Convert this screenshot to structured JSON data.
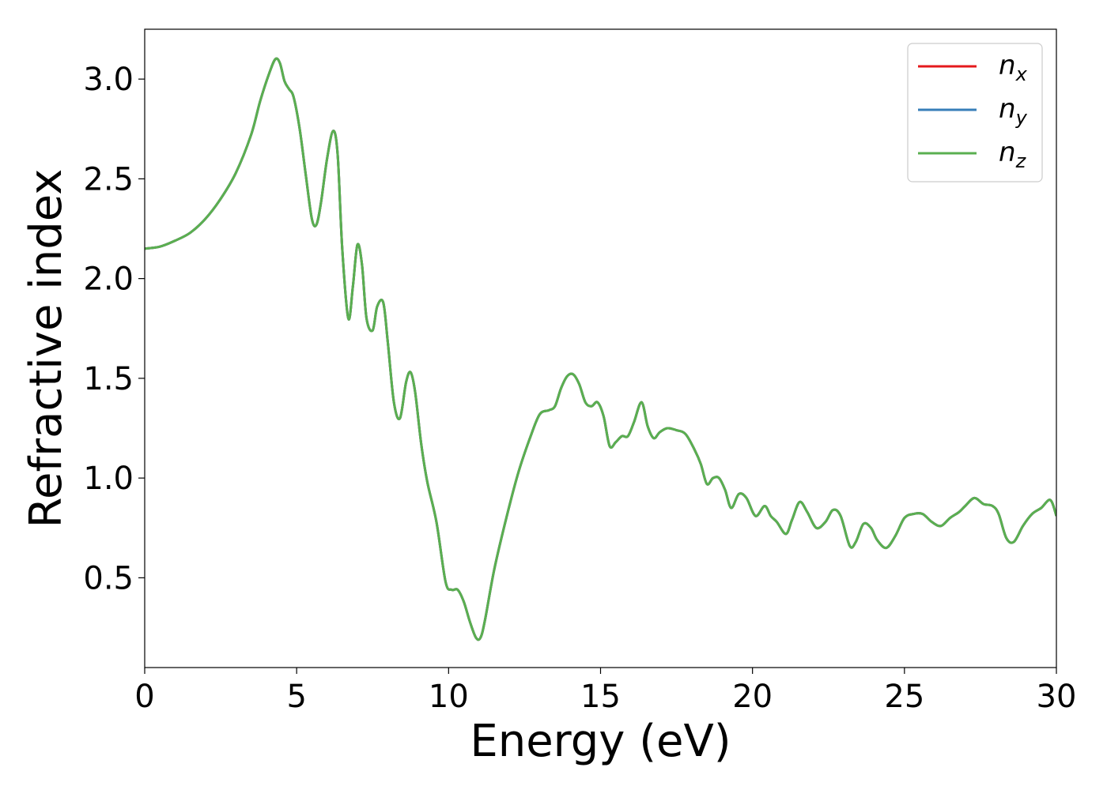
{
  "chart_data": {
    "type": "line",
    "xlabel": "Energy (eV)",
    "ylabel": "Refractive index",
    "xlim": [
      0,
      30
    ],
    "ylim": [
      0.05,
      3.25
    ],
    "xticks": [
      0,
      5,
      10,
      15,
      20,
      25,
      30
    ],
    "xtick_labels": [
      "0",
      "5",
      "10",
      "15",
      "20",
      "25",
      "30"
    ],
    "yticks": [
      0.5,
      1.0,
      1.5,
      2.0,
      2.5,
      3.0
    ],
    "ytick_labels": [
      "0.5",
      "1.0",
      "1.5",
      "2.0",
      "2.5",
      "3.0"
    ],
    "grid": false,
    "legend_position": "top-right",
    "x": [
      0,
      0.5,
      1.0,
      1.5,
      2.0,
      2.5,
      3.0,
      3.5,
      3.8,
      4.1,
      4.3,
      4.45,
      4.6,
      4.75,
      4.9,
      5.1,
      5.3,
      5.5,
      5.65,
      5.8,
      6.0,
      6.2,
      6.35,
      6.5,
      6.7,
      6.85,
      7.0,
      7.15,
      7.3,
      7.5,
      7.65,
      7.85,
      8.0,
      8.2,
      8.4,
      8.6,
      8.75,
      8.9,
      9.1,
      9.3,
      9.6,
      9.9,
      10.1,
      10.3,
      10.5,
      10.7,
      10.9,
      11.05,
      11.2,
      11.5,
      11.9,
      12.3,
      12.7,
      13.0,
      13.3,
      13.5,
      13.7,
      13.9,
      14.1,
      14.3,
      14.5,
      14.7,
      14.9,
      15.1,
      15.3,
      15.5,
      15.7,
      15.9,
      16.1,
      16.35,
      16.55,
      16.75,
      16.95,
      17.2,
      17.5,
      17.8,
      18.1,
      18.3,
      18.5,
      18.7,
      18.9,
      19.1,
      19.3,
      19.55,
      19.8,
      20.1,
      20.4,
      20.6,
      20.8,
      21.1,
      21.3,
      21.55,
      21.8,
      22.1,
      22.4,
      22.65,
      22.9,
      23.2,
      23.4,
      23.65,
      23.9,
      24.1,
      24.4,
      24.7,
      25.0,
      25.3,
      25.6,
      25.9,
      26.2,
      26.5,
      26.8,
      27.0,
      27.3,
      27.6,
      27.9,
      28.1,
      28.35,
      28.6,
      28.9,
      29.2,
      29.5,
      29.8,
      30.0
    ],
    "series": [
      {
        "name": "n_x",
        "legend_base": "n",
        "legend_sub": "x",
        "color": "#e41a1c",
        "y": [
          2.15,
          2.16,
          2.19,
          2.23,
          2.3,
          2.4,
          2.53,
          2.72,
          2.89,
          3.03,
          3.1,
          3.08,
          2.99,
          2.95,
          2.91,
          2.75,
          2.52,
          2.3,
          2.27,
          2.38,
          2.6,
          2.74,
          2.62,
          2.15,
          1.8,
          1.96,
          2.17,
          2.07,
          1.8,
          1.74,
          1.86,
          1.88,
          1.68,
          1.38,
          1.3,
          1.48,
          1.53,
          1.43,
          1.17,
          0.98,
          0.78,
          0.48,
          0.44,
          0.44,
          0.38,
          0.28,
          0.2,
          0.2,
          0.29,
          0.54,
          0.8,
          1.03,
          1.21,
          1.32,
          1.34,
          1.36,
          1.45,
          1.51,
          1.52,
          1.47,
          1.38,
          1.36,
          1.38,
          1.31,
          1.16,
          1.18,
          1.21,
          1.21,
          1.28,
          1.38,
          1.26,
          1.2,
          1.23,
          1.25,
          1.24,
          1.22,
          1.14,
          1.07,
          0.97,
          1.0,
          1.0,
          0.94,
          0.85,
          0.92,
          0.9,
          0.81,
          0.86,
          0.81,
          0.78,
          0.72,
          0.79,
          0.88,
          0.83,
          0.75,
          0.78,
          0.84,
          0.81,
          0.66,
          0.68,
          0.77,
          0.75,
          0.69,
          0.65,
          0.71,
          0.8,
          0.82,
          0.82,
          0.78,
          0.76,
          0.8,
          0.83,
          0.86,
          0.9,
          0.87,
          0.86,
          0.82,
          0.7,
          0.68,
          0.76,
          0.82,
          0.85,
          0.89,
          0.81
        ]
      },
      {
        "name": "n_y",
        "legend_base": "n",
        "legend_sub": "y",
        "color": "#377eb8",
        "y": [
          2.15,
          2.16,
          2.19,
          2.23,
          2.3,
          2.4,
          2.53,
          2.72,
          2.89,
          3.03,
          3.1,
          3.08,
          2.99,
          2.95,
          2.91,
          2.75,
          2.52,
          2.3,
          2.27,
          2.38,
          2.6,
          2.74,
          2.62,
          2.15,
          1.8,
          1.96,
          2.17,
          2.07,
          1.8,
          1.74,
          1.86,
          1.88,
          1.68,
          1.38,
          1.3,
          1.48,
          1.53,
          1.43,
          1.17,
          0.98,
          0.78,
          0.48,
          0.44,
          0.44,
          0.38,
          0.28,
          0.2,
          0.2,
          0.29,
          0.54,
          0.8,
          1.03,
          1.21,
          1.32,
          1.34,
          1.36,
          1.45,
          1.51,
          1.52,
          1.47,
          1.38,
          1.36,
          1.38,
          1.31,
          1.16,
          1.18,
          1.21,
          1.21,
          1.28,
          1.38,
          1.26,
          1.2,
          1.23,
          1.25,
          1.24,
          1.22,
          1.14,
          1.07,
          0.97,
          1.0,
          1.0,
          0.94,
          0.85,
          0.92,
          0.9,
          0.81,
          0.86,
          0.81,
          0.78,
          0.72,
          0.79,
          0.88,
          0.83,
          0.75,
          0.78,
          0.84,
          0.81,
          0.66,
          0.68,
          0.77,
          0.75,
          0.69,
          0.65,
          0.71,
          0.8,
          0.82,
          0.82,
          0.78,
          0.76,
          0.8,
          0.83,
          0.86,
          0.9,
          0.87,
          0.86,
          0.82,
          0.7,
          0.68,
          0.76,
          0.82,
          0.85,
          0.89,
          0.81
        ]
      },
      {
        "name": "n_z",
        "legend_base": "n",
        "legend_sub": "z",
        "color": "#5aaf50",
        "y": [
          2.15,
          2.16,
          2.19,
          2.23,
          2.3,
          2.4,
          2.53,
          2.72,
          2.89,
          3.03,
          3.1,
          3.08,
          2.99,
          2.95,
          2.91,
          2.75,
          2.52,
          2.3,
          2.27,
          2.38,
          2.6,
          2.74,
          2.62,
          2.15,
          1.8,
          1.96,
          2.17,
          2.07,
          1.8,
          1.74,
          1.86,
          1.88,
          1.68,
          1.38,
          1.3,
          1.48,
          1.53,
          1.43,
          1.17,
          0.98,
          0.78,
          0.48,
          0.44,
          0.44,
          0.38,
          0.28,
          0.2,
          0.2,
          0.29,
          0.54,
          0.8,
          1.03,
          1.21,
          1.32,
          1.34,
          1.36,
          1.45,
          1.51,
          1.52,
          1.47,
          1.38,
          1.36,
          1.38,
          1.31,
          1.16,
          1.18,
          1.21,
          1.21,
          1.28,
          1.38,
          1.26,
          1.2,
          1.23,
          1.25,
          1.24,
          1.22,
          1.14,
          1.07,
          0.97,
          1.0,
          1.0,
          0.94,
          0.85,
          0.92,
          0.9,
          0.81,
          0.86,
          0.81,
          0.78,
          0.72,
          0.79,
          0.88,
          0.83,
          0.75,
          0.78,
          0.84,
          0.81,
          0.66,
          0.68,
          0.77,
          0.75,
          0.69,
          0.65,
          0.71,
          0.8,
          0.82,
          0.82,
          0.78,
          0.76,
          0.8,
          0.83,
          0.86,
          0.9,
          0.87,
          0.86,
          0.82,
          0.7,
          0.68,
          0.76,
          0.82,
          0.85,
          0.89,
          0.81
        ]
      }
    ]
  }
}
